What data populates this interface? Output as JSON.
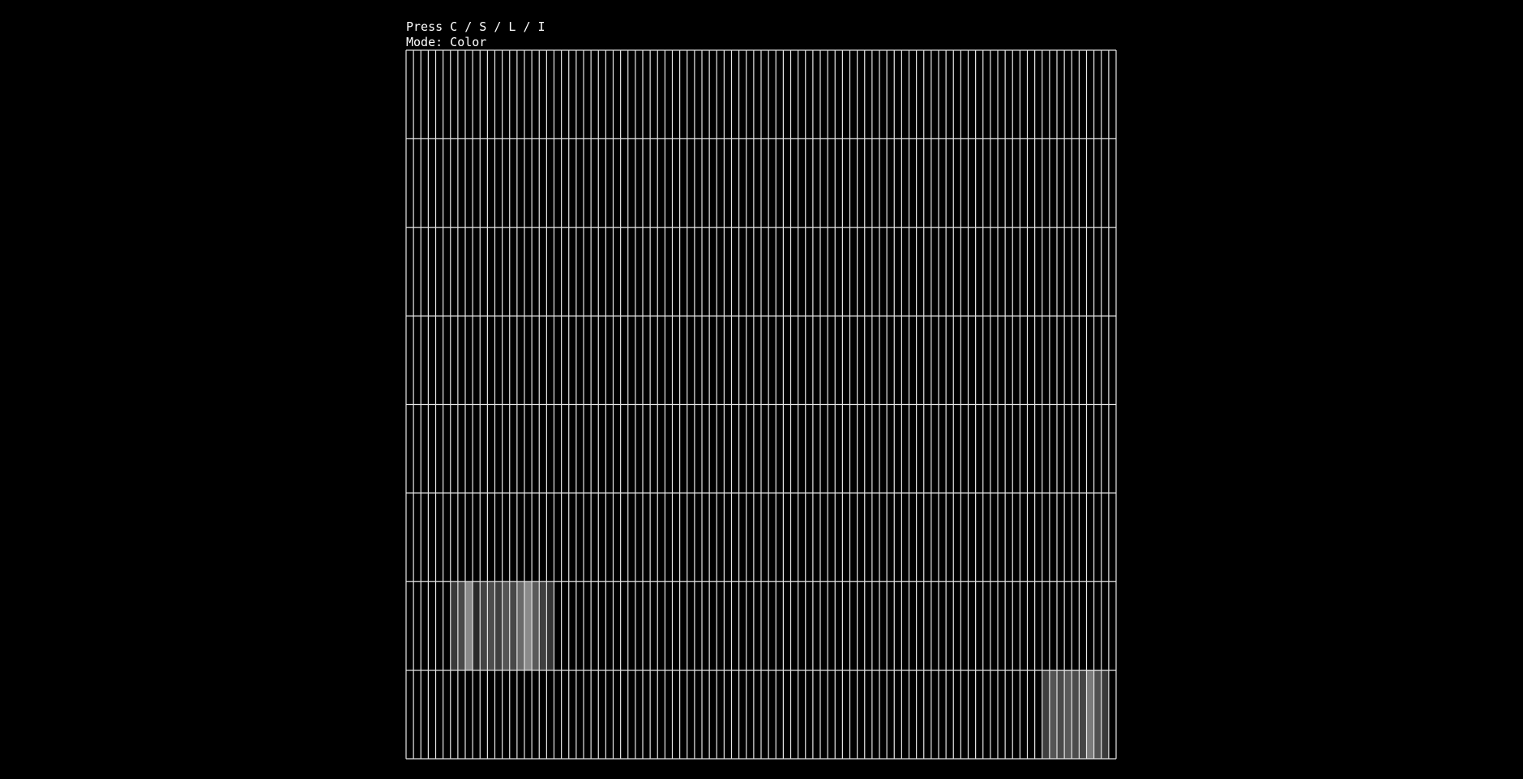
{
  "header": {
    "hint": "Press C / S / L / I",
    "mode": "Mode: Color"
  }
}
